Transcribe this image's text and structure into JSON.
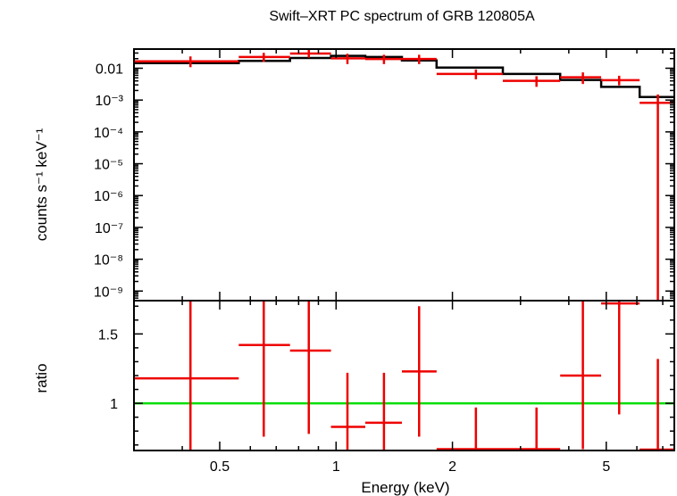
{
  "chart_data": [
    {
      "type": "line",
      "title": "Swift–XRT PC spectrum of GRB 120805A",
      "ylabel": "counts s⁻¹ keV⁻¹",
      "x_scale": "log",
      "y_scale": "log",
      "xlim": [
        0.3,
        7.5
      ],
      "ylim": [
        5e-10,
        0.04
      ],
      "ytick_labels": [
        "0.01",
        "10⁻³",
        "10⁻⁴",
        "10⁻⁵",
        "10⁻⁶",
        "10⁻⁷",
        "10⁻⁸",
        "10⁻⁹"
      ],
      "ytick_values": [
        0.01,
        0.001,
        0.0001,
        1e-05,
        1e-06,
        1e-07,
        1e-08,
        1e-09
      ],
      "colors": {
        "data": "#ee0000",
        "model": "#000000"
      },
      "series": [
        {
          "kind": "data_with_errors",
          "points": [
            {
              "x": 0.42,
              "x_lo": 0.3,
              "x_hi": 0.56,
              "y": 0.0165,
              "y_lo": 0.0108,
              "y_hi": 0.0235
            },
            {
              "x": 0.65,
              "x_lo": 0.56,
              "x_hi": 0.76,
              "y": 0.0225,
              "y_lo": 0.0158,
              "y_hi": 0.0305
            },
            {
              "x": 0.85,
              "x_lo": 0.76,
              "x_hi": 0.97,
              "y": 0.029,
              "y_lo": 0.0215,
              "y_hi": 0.0375
            },
            {
              "x": 1.07,
              "x_lo": 0.97,
              "x_hi": 1.19,
              "y": 0.0205,
              "y_lo": 0.0135,
              "y_hi": 0.0285
            },
            {
              "x": 1.33,
              "x_lo": 1.19,
              "x_hi": 1.48,
              "y": 0.0195,
              "y_lo": 0.0135,
              "y_hi": 0.0265
            },
            {
              "x": 1.64,
              "x_lo": 1.48,
              "x_hi": 1.82,
              "y": 0.0195,
              "y_lo": 0.0135,
              "y_hi": 0.0265
            },
            {
              "x": 2.3,
              "x_lo": 1.82,
              "x_hi": 2.7,
              "y": 0.0066,
              "y_lo": 0.0045,
              "y_hi": 0.0092
            },
            {
              "x": 3.3,
              "x_lo": 2.7,
              "x_hi": 3.8,
              "y": 0.004,
              "y_lo": 0.0026,
              "y_hi": 0.0056
            },
            {
              "x": 4.35,
              "x_lo": 3.8,
              "x_hi": 4.85,
              "y": 0.0052,
              "y_lo": 0.0032,
              "y_hi": 0.0074
            },
            {
              "x": 5.4,
              "x_lo": 4.85,
              "x_hi": 6.1,
              "y": 0.0042,
              "y_lo": 0.0029,
              "y_hi": 0.0058
            },
            {
              "x": 6.8,
              "x_lo": 6.1,
              "x_hi": 7.5,
              "y": 0.00082,
              "y_lo": 5e-10,
              "y_hi": 0.0015
            }
          ]
        },
        {
          "kind": "model_step",
          "bins": [
            {
              "x_lo": 0.3,
              "x_hi": 0.56,
              "y": 0.0145
            },
            {
              "x_lo": 0.56,
              "x_hi": 0.76,
              "y": 0.017
            },
            {
              "x_lo": 0.76,
              "x_hi": 0.97,
              "y": 0.021
            },
            {
              "x_lo": 0.97,
              "x_hi": 1.19,
              "y": 0.0245
            },
            {
              "x_lo": 1.19,
              "x_hi": 1.48,
              "y": 0.0225
            },
            {
              "x_lo": 1.48,
              "x_hi": 1.82,
              "y": 0.0175
            },
            {
              "x_lo": 1.82,
              "x_hi": 2.7,
              "y": 0.0105
            },
            {
              "x_lo": 2.7,
              "x_hi": 3.8,
              "y": 0.0066
            },
            {
              "x_lo": 3.8,
              "x_hi": 4.85,
              "y": 0.0043
            },
            {
              "x_lo": 4.85,
              "x_hi": 6.1,
              "y": 0.0026
            },
            {
              "x_lo": 6.1,
              "x_hi": 7.5,
              "y": 0.00125
            }
          ]
        }
      ]
    },
    {
      "type": "scatter",
      "xlabel": "Energy (keV)",
      "ylabel": "ratio",
      "x_scale": "log",
      "xlim": [
        0.3,
        7.5
      ],
      "ylim": [
        0.66,
        1.74
      ],
      "xtick_labels": [
        "0.5",
        "1",
        "2",
        "5"
      ],
      "xtick_values": [
        0.5,
        1,
        2,
        5
      ],
      "ytick_labels": [
        "1",
        "1.5"
      ],
      "ytick_values": [
        1,
        1.5
      ],
      "reference_line": 1,
      "colors": {
        "data": "#ee0000",
        "reference": "#00dd00"
      },
      "points": [
        {
          "x": 0.42,
          "x_lo": 0.3,
          "x_hi": 0.56,
          "y": 1.18,
          "y_lo": 0.66,
          "y_hi": 1.74
        },
        {
          "x": 0.65,
          "x_lo": 0.56,
          "x_hi": 0.76,
          "y": 1.42,
          "y_lo": 0.76,
          "y_hi": 1.74
        },
        {
          "x": 0.85,
          "x_lo": 0.76,
          "x_hi": 0.97,
          "y": 1.38,
          "y_lo": 0.78,
          "y_hi": 1.74
        },
        {
          "x": 1.07,
          "x_lo": 0.97,
          "x_hi": 1.19,
          "y": 0.83,
          "y_lo": 0.66,
          "y_hi": 1.22
        },
        {
          "x": 1.33,
          "x_lo": 1.19,
          "x_hi": 1.48,
          "y": 0.86,
          "y_lo": 0.66,
          "y_hi": 1.22
        },
        {
          "x": 1.64,
          "x_lo": 1.48,
          "x_hi": 1.82,
          "y": 1.23,
          "y_lo": 0.76,
          "y_hi": 1.7
        },
        {
          "x": 2.3,
          "x_lo": 1.82,
          "x_hi": 2.7,
          "y": 0.67,
          "y_lo": 0.66,
          "y_hi": 0.97
        },
        {
          "x": 3.3,
          "x_lo": 2.7,
          "x_hi": 3.8,
          "y": 0.67,
          "y_lo": 0.66,
          "y_hi": 0.97
        },
        {
          "x": 4.35,
          "x_lo": 3.8,
          "x_hi": 4.85,
          "y": 1.2,
          "y_lo": 0.67,
          "y_hi": 1.74
        },
        {
          "x": 5.4,
          "x_lo": 4.85,
          "x_hi": 6.1,
          "y": 1.72,
          "y_lo": 0.92,
          "y_hi": 1.74
        },
        {
          "x": 6.8,
          "x_lo": 6.1,
          "x_hi": 7.5,
          "y": 0.66,
          "y_lo": 0.66,
          "y_hi": 1.32
        }
      ]
    }
  ]
}
